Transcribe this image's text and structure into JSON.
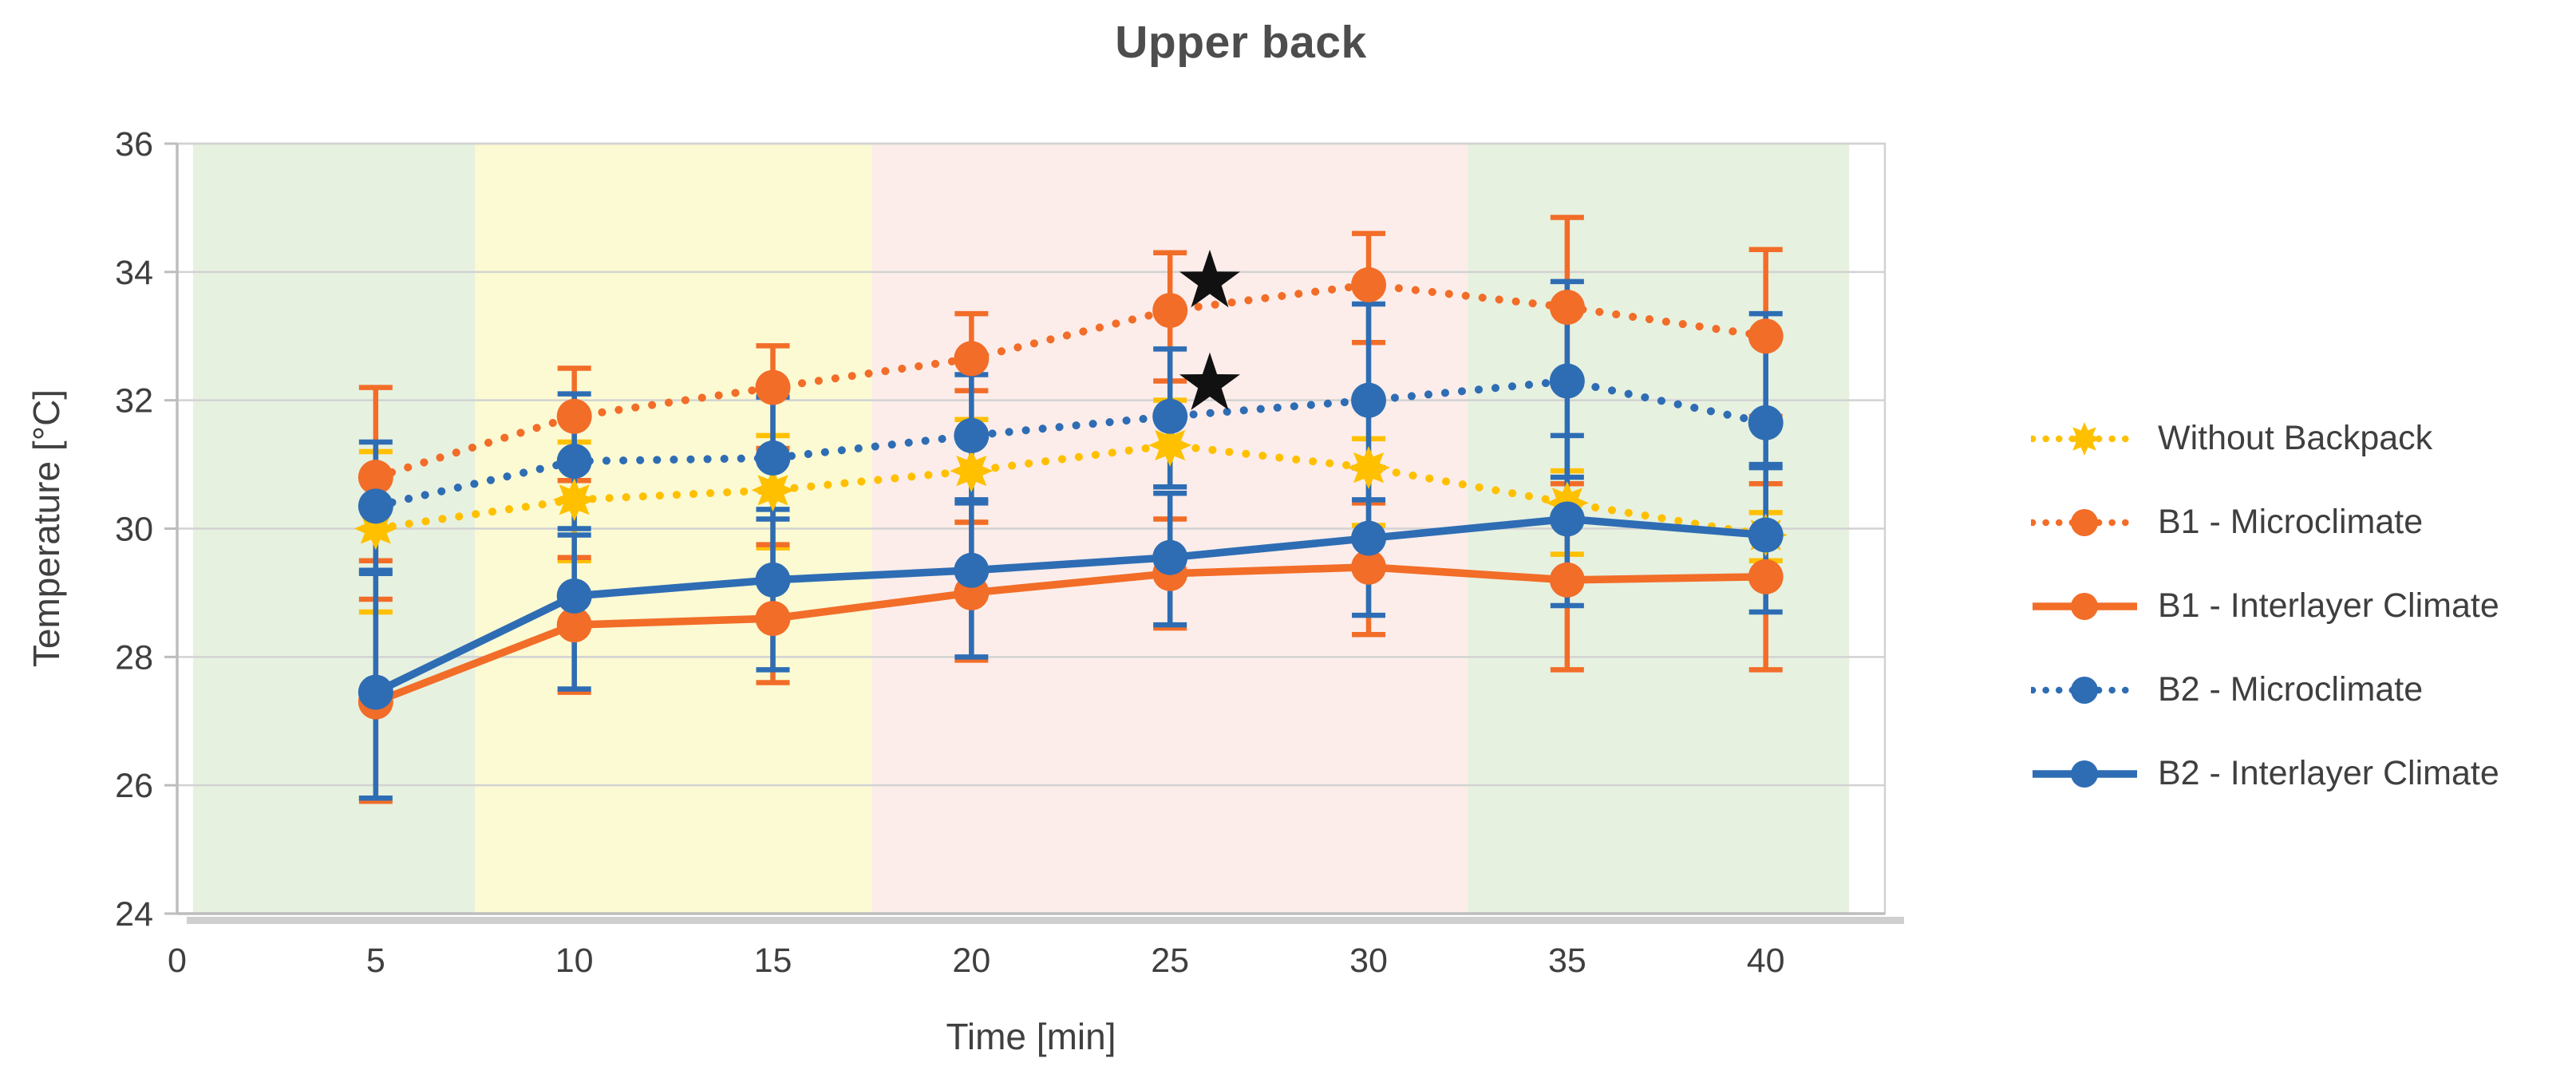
{
  "title": "Upper back",
  "chart_data": {
    "type": "line",
    "title": "Upper back",
    "xlabel": "Time [min]",
    "ylabel": "Temperature [°C]",
    "xlim": [
      0,
      43
    ],
    "ylim": [
      24,
      36
    ],
    "x_ticks": [
      0,
      5,
      10,
      15,
      20,
      25,
      30,
      35,
      40
    ],
    "y_ticks": [
      36,
      34,
      32,
      30,
      28,
      26,
      24
    ],
    "grid": "horizontal",
    "legend_position": "right",
    "x": [
      5,
      10,
      15,
      20,
      25,
      30,
      35,
      40
    ],
    "series": [
      {
        "id": "without-backpack",
        "name": "Without Backpack",
        "color": "#FFC000",
        "line": "dotted",
        "marker": "star8",
        "values": [
          30.0,
          30.45,
          30.6,
          30.9,
          31.3,
          30.95,
          30.4,
          29.9
        ],
        "err_up": [
          1.2,
          0.9,
          0.85,
          0.8,
          0.7,
          0.45,
          0.5,
          0.35
        ],
        "err_down": [
          1.3,
          0.95,
          0.9,
          0.8,
          0.65,
          0.9,
          0.8,
          0.4
        ]
      },
      {
        "id": "b1-microclimate",
        "name": "B1 - Microclimate",
        "color": "#F26D28",
        "line": "dotted",
        "marker": "circle",
        "values": [
          30.8,
          31.75,
          32.2,
          32.65,
          33.4,
          33.8,
          33.45,
          33.0
        ],
        "err_up": [
          1.4,
          0.75,
          0.65,
          0.7,
          0.9,
          0.8,
          1.4,
          1.35
        ],
        "err_down": [
          1.3,
          1.0,
          0.95,
          0.5,
          1.1,
          0.9,
          1.2,
          1.25
        ]
      },
      {
        "id": "b1-interlayer-climate",
        "name": "B1 - Interlayer Climate",
        "color": "#F26D28",
        "line": "solid",
        "marker": "circle",
        "values": [
          27.3,
          28.5,
          28.6,
          29.0,
          29.3,
          29.4,
          29.2,
          29.25
        ],
        "err_up": [
          1.6,
          1.05,
          1.15,
          1.1,
          0.85,
          1.0,
          1.5,
          1.45
        ],
        "err_down": [
          1.55,
          1.05,
          1.0,
          1.05,
          0.85,
          1.05,
          1.4,
          1.45
        ]
      },
      {
        "id": "b2-microclimate",
        "name": "B2 - Microclimate",
        "color": "#2E6DB4",
        "line": "dotted",
        "marker": "circle",
        "values": [
          30.35,
          31.05,
          31.1,
          31.45,
          31.75,
          32.0,
          32.3,
          31.65
        ],
        "err_up": [
          1.0,
          1.05,
          0.95,
          0.95,
          1.05,
          1.5,
          1.55,
          1.7
        ],
        "err_down": [
          1.0,
          1.05,
          0.95,
          1.0,
          1.1,
          1.55,
          1.5,
          0.7
        ]
      },
      {
        "id": "b2-interlayer-climate",
        "name": "B2 - Interlayer Climate",
        "color": "#2E6DB4",
        "line": "solid",
        "marker": "circle",
        "values": [
          27.45,
          28.95,
          29.2,
          29.35,
          29.55,
          29.85,
          30.15,
          29.9
        ],
        "err_up": [
          1.85,
          0.95,
          1.1,
          1.05,
          1.0,
          1.1,
          1.3,
          1.1
        ],
        "err_down": [
          1.65,
          1.45,
          1.4,
          1.35,
          1.05,
          1.2,
          1.35,
          1.2
        ]
      }
    ],
    "background_bands": [
      {
        "from": 0.4,
        "to": 7.5,
        "color": "#E7F1E0"
      },
      {
        "from": 7.5,
        "to": 17.5,
        "color": "#FBFAD3"
      },
      {
        "from": 17.5,
        "to": 32.5,
        "color": "#FCEDEA"
      },
      {
        "from": 32.5,
        "to": 42.1,
        "color": "#E7F1E0"
      }
    ],
    "annotations": [
      {
        "symbol": "★",
        "x": 26.0,
        "y": 33.85
      },
      {
        "symbol": "★",
        "x": 26.0,
        "y": 32.25
      }
    ],
    "style": {
      "gridline_color": "#D2D2D2",
      "axis_color": "#BDBDBD",
      "shadow_color": "#CFCFCF",
      "tick_label_color": "#3F3F3F",
      "annotation_color": "#111111"
    }
  }
}
